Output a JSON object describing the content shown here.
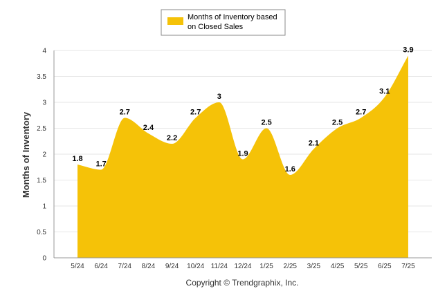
{
  "chart_data": {
    "type": "area",
    "categories": [
      "5/24",
      "6/24",
      "7/24",
      "8/24",
      "9/24",
      "10/24",
      "11/24",
      "12/24",
      "1/25",
      "2/25",
      "3/25",
      "4/25",
      "5/25",
      "6/25",
      "7/25"
    ],
    "series": [
      {
        "name": "Months of Inventory based on Closed Sales",
        "values": [
          1.8,
          1.7,
          2.7,
          2.4,
          2.2,
          2.7,
          3,
          1.9,
          2.5,
          1.6,
          2.1,
          2.5,
          2.7,
          3.1,
          3.9
        ],
        "labels": [
          "1.8",
          "1.7",
          "2.7",
          "2.4",
          "2.2",
          "2.7",
          "3",
          "1.9",
          "2.5",
          "1.6",
          "2.1",
          "2.5",
          "2.7",
          "3.1",
          "3.9"
        ],
        "color": "#F5C208"
      }
    ],
    "ylabel": "Months of Inventory",
    "ylim": [
      0,
      4
    ],
    "yticks": [
      "0",
      "0.5",
      "1",
      "1.5",
      "2",
      "2.5",
      "3",
      "3.5",
      "4"
    ],
    "grid": true,
    "legend": "top-center",
    "legend_line1": "Months of Inventory based",
    "legend_line2": "on Closed Sales",
    "footer": "Copyright © Trendgraphix, Inc."
  },
  "colors": {
    "fill": "#F5C208",
    "grid": "#e6e6e6",
    "axis": "#999999"
  }
}
